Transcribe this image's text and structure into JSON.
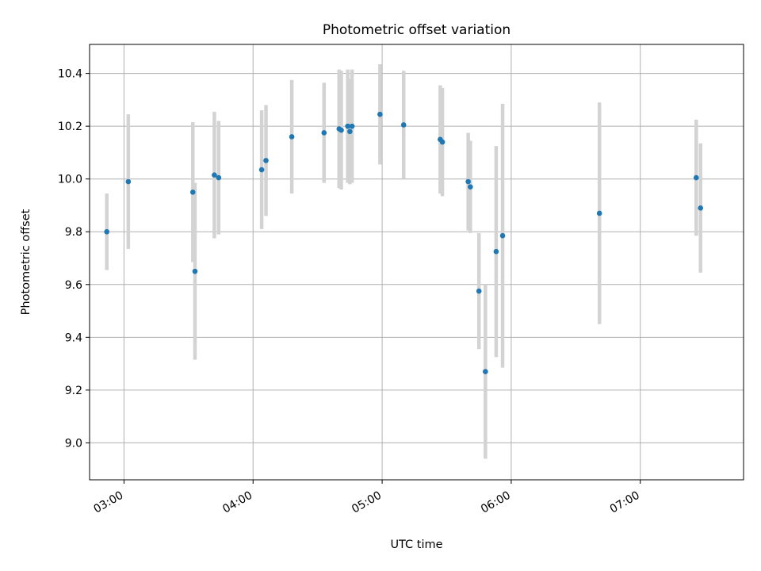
{
  "chart_data": {
    "type": "scatter",
    "title": "Photometric offset variation",
    "xlabel": "UTC time",
    "ylabel": "Photometric offset",
    "xlim": [
      "02:44",
      "07:48"
    ],
    "ylim": [
      8.86,
      10.51
    ],
    "x_ticks": [
      "03:00",
      "04:00",
      "05:00",
      "06:00",
      "07:00"
    ],
    "y_ticks": [
      "9.0",
      "9.2",
      "9.4",
      "9.6",
      "9.8",
      "10.0",
      "10.2",
      "10.4"
    ],
    "grid": true,
    "marker_color": "#1f77b4",
    "errorbar_color": "#d3d3d3",
    "points": [
      {
        "x": "02:52",
        "y": 9.8,
        "err": 0.145
      },
      {
        "x": "03:02",
        "y": 9.99,
        "err": 0.255
      },
      {
        "x": "03:32",
        "y": 9.95,
        "err": 0.265
      },
      {
        "x": "03:33",
        "y": 9.65,
        "err": 0.335
      },
      {
        "x": "03:42",
        "y": 10.015,
        "err": 0.24
      },
      {
        "x": "03:44",
        "y": 10.005,
        "err": 0.215
      },
      {
        "x": "04:04",
        "y": 10.035,
        "err": 0.225
      },
      {
        "x": "04:06",
        "y": 10.07,
        "err": 0.21
      },
      {
        "x": "04:18",
        "y": 10.16,
        "err": 0.215
      },
      {
        "x": "04:33",
        "y": 10.175,
        "err": 0.19
      },
      {
        "x": "04:40",
        "y": 10.19,
        "err": 0.225
      },
      {
        "x": "04:41",
        "y": 10.185,
        "err": 0.225
      },
      {
        "x": "04:44",
        "y": 10.2,
        "err": 0.215
      },
      {
        "x": "04:45",
        "y": 10.18,
        "err": 0.2
      },
      {
        "x": "04:46",
        "y": 10.2,
        "err": 0.215
      },
      {
        "x": "04:59",
        "y": 10.245,
        "err": 0.19
      },
      {
        "x": "05:10",
        "y": 10.205,
        "err": 0.205
      },
      {
        "x": "05:27",
        "y": 10.15,
        "err": 0.205
      },
      {
        "x": "05:28",
        "y": 10.14,
        "err": 0.205
      },
      {
        "x": "05:40",
        "y": 9.99,
        "err": 0.185
      },
      {
        "x": "05:41",
        "y": 9.97,
        "err": 0.175
      },
      {
        "x": "05:45",
        "y": 9.575,
        "err": 0.22
      },
      {
        "x": "05:48",
        "y": 9.27,
        "err": 0.33
      },
      {
        "x": "05:53",
        "y": 9.725,
        "err": 0.4
      },
      {
        "x": "05:56",
        "y": 9.785,
        "err": 0.5
      },
      {
        "x": "06:41",
        "y": 9.87,
        "err": 0.42
      },
      {
        "x": "07:26",
        "y": 10.005,
        "err": 0.22
      },
      {
        "x": "07:28",
        "y": 9.89,
        "err": 0.245
      }
    ]
  }
}
